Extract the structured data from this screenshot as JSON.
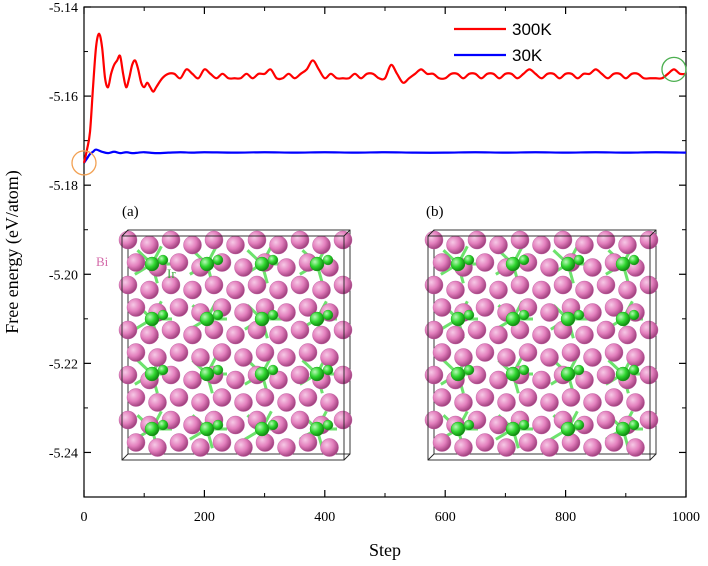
{
  "chart_data": {
    "type": "line",
    "title": "",
    "xlabel": "Step",
    "ylabel": "Free energy  (eV/atom)",
    "xlim": [
      0,
      1000
    ],
    "ylim": [
      -5.25,
      -5.14
    ],
    "x_ticks": [
      "0",
      "200",
      "400",
      "600",
      "800",
      "1000"
    ],
    "y_ticks": [
      "-5.14",
      "-5.16",
      "-5.18",
      "-5.20",
      "-5.22",
      "-5.24"
    ],
    "legend_position": "top-right",
    "series": [
      {
        "name": "300K",
        "color": "#ff0000",
        "x": [
          0,
          5,
          10,
          15,
          20,
          25,
          30,
          35,
          40,
          45,
          50,
          55,
          60,
          65,
          70,
          75,
          80,
          85,
          90,
          95,
          100,
          105,
          110,
          115,
          120,
          130,
          140,
          150,
          160,
          170,
          180,
          190,
          200,
          210,
          220,
          230,
          240,
          250,
          260,
          270,
          280,
          290,
          300,
          310,
          320,
          330,
          340,
          350,
          360,
          370,
          380,
          390,
          400,
          410,
          420,
          430,
          440,
          450,
          460,
          470,
          480,
          490,
          500,
          510,
          520,
          530,
          540,
          550,
          560,
          570,
          580,
          590,
          600,
          610,
          620,
          630,
          640,
          650,
          660,
          670,
          680,
          690,
          700,
          710,
          720,
          730,
          740,
          750,
          760,
          770,
          780,
          790,
          800,
          810,
          820,
          830,
          840,
          850,
          860,
          870,
          880,
          890,
          900,
          910,
          920,
          930,
          940,
          950,
          960,
          970,
          980,
          990,
          1000
        ],
        "values": [
          -5.175,
          -5.172,
          -5.168,
          -5.158,
          -5.149,
          -5.146,
          -5.149,
          -5.156,
          -5.158,
          -5.155,
          -5.153,
          -5.152,
          -5.151,
          -5.155,
          -5.158,
          -5.156,
          -5.153,
          -5.152,
          -5.154,
          -5.157,
          -5.158,
          -5.157,
          -5.158,
          -5.159,
          -5.158,
          -5.156,
          -5.155,
          -5.155,
          -5.156,
          -5.154,
          -5.155,
          -5.156,
          -5.154,
          -5.155,
          -5.156,
          -5.155,
          -5.156,
          -5.156,
          -5.156,
          -5.155,
          -5.156,
          -5.155,
          -5.155,
          -5.154,
          -5.156,
          -5.156,
          -5.155,
          -5.156,
          -5.155,
          -5.154,
          -5.152,
          -5.154,
          -5.156,
          -5.155,
          -5.156,
          -5.156,
          -5.156,
          -5.155,
          -5.156,
          -5.155,
          -5.155,
          -5.156,
          -5.156,
          -5.153,
          -5.155,
          -5.157,
          -5.156,
          -5.155,
          -5.154,
          -5.155,
          -5.155,
          -5.156,
          -5.156,
          -5.155,
          -5.155,
          -5.156,
          -5.155,
          -5.155,
          -5.156,
          -5.155,
          -5.155,
          -5.156,
          -5.155,
          -5.155,
          -5.156,
          -5.155,
          -5.154,
          -5.155,
          -5.156,
          -5.155,
          -5.155,
          -5.156,
          -5.155,
          -5.155,
          -5.156,
          -5.155,
          -5.155,
          -5.154,
          -5.155,
          -5.156,
          -5.155,
          -5.155,
          -5.156,
          -5.155,
          -5.155,
          -5.156,
          -5.156,
          -5.156,
          -5.156,
          -5.155,
          -5.154,
          -5.155,
          -5.155
        ]
      },
      {
        "name": "30K",
        "color": "#0000ff",
        "x": [
          0,
          5,
          10,
          15,
          20,
          30,
          40,
          50,
          60,
          70,
          80,
          90,
          100,
          120,
          140,
          160,
          180,
          200,
          250,
          300,
          350,
          400,
          450,
          500,
          550,
          600,
          650,
          700,
          750,
          800,
          850,
          900,
          950,
          1000
        ],
        "values": [
          -5.175,
          -5.174,
          -5.173,
          -5.1725,
          -5.172,
          -5.1725,
          -5.1728,
          -5.1725,
          -5.1728,
          -5.1726,
          -5.1728,
          -5.1727,
          -5.1726,
          -5.1728,
          -5.1727,
          -5.1726,
          -5.1727,
          -5.1726,
          -5.1727,
          -5.1726,
          -5.1727,
          -5.1726,
          -5.1727,
          -5.1726,
          -5.1727,
          -5.1727,
          -5.1726,
          -5.1727,
          -5.1726,
          -5.1727,
          -5.1726,
          -5.1727,
          -5.1726,
          -5.1727
        ]
      }
    ],
    "markers": [
      {
        "x": 0,
        "y": -5.175,
        "color": "#f2a153"
      },
      {
        "x": 980,
        "y": -5.154,
        "color": "#4caf50"
      }
    ]
  },
  "insets": [
    {
      "label": "(a)",
      "bi_label": "Bi",
      "ir_label": "Ir"
    },
    {
      "label": "(b)"
    }
  ],
  "colors": {
    "bi_atom": "#e37fbd",
    "ir_atom": "#2fd62f",
    "axis": "#000000"
  }
}
